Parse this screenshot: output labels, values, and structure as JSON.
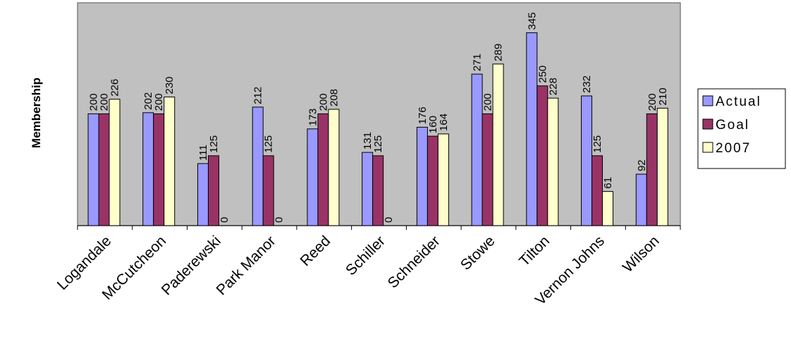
{
  "chart_data": {
    "type": "bar",
    "title": "",
    "xlabel": "",
    "ylabel": "Membership",
    "ylim": [
      0,
      350
    ],
    "grid": false,
    "legend_position": "right",
    "categories": [
      "Logandale",
      "McCutcheon",
      "Paderewski",
      "Park Manor",
      "Reed",
      "Schiller",
      "Schneider",
      "Stowe",
      "Tilton",
      "Vernon Johns",
      "Wilson"
    ],
    "series": [
      {
        "name": "Actual",
        "color": "#9999ff",
        "values": [
          200,
          202,
          111,
          212,
          173,
          131,
          176,
          271,
          345,
          232,
          92
        ]
      },
      {
        "name": "Goal",
        "color": "#993366",
        "values": [
          200,
          200,
          125,
          125,
          200,
          125,
          160,
          200,
          250,
          125,
          200
        ]
      },
      {
        "name": "2007",
        "color": "#ffffcc",
        "values": [
          226,
          230,
          0,
          0,
          208,
          0,
          164,
          289,
          228,
          61,
          210
        ]
      }
    ]
  }
}
